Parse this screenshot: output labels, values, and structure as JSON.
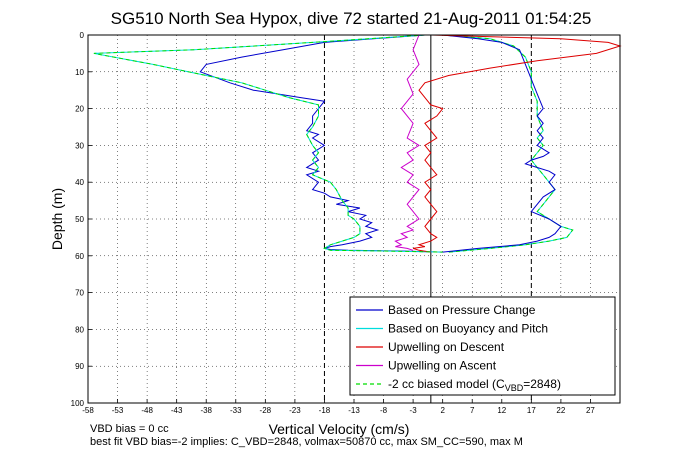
{
  "chart_data": {
    "type": "line",
    "title": "SG510 North Sea Hypox, dive 72 started 21-Aug-2011 01:54:25",
    "xlabel": "Vertical Velocity (cm/s)",
    "ylabel": "Depth (m)",
    "xlim": [
      -58,
      32
    ],
    "ylim": [
      100,
      0
    ],
    "y_reversed": true,
    "grid": true,
    "legend_position": "bottom-right",
    "xticks": [
      -58,
      -53,
      -48,
      -43,
      -38,
      -33,
      -28,
      -23,
      -18,
      -13,
      -8,
      -3,
      2,
      7,
      12,
      17,
      22,
      27
    ],
    "yticks": [
      0,
      10,
      20,
      30,
      40,
      50,
      60,
      70,
      80,
      90,
      100
    ],
    "reference_lines": [
      {
        "style": "dashed",
        "x": -18
      },
      {
        "style": "dashed",
        "x": 17
      },
      {
        "style": "solid",
        "x": 0
      }
    ],
    "series": [
      {
        "name": "Based on Pressure Change",
        "color": "#0000cc",
        "x": [
          -1,
          -18,
          -25,
          -32,
          -38,
          -39,
          -34,
          -30,
          -26,
          -22,
          -18,
          -19,
          -20,
          -20,
          -21,
          -19,
          -20,
          -18,
          -20,
          -19,
          -21,
          -19,
          -21,
          -19,
          -20,
          -18,
          -17,
          -14,
          -16,
          -12,
          -14,
          -11,
          -12,
          -10,
          -11,
          -9,
          -11,
          -10,
          -12,
          -15,
          -17,
          -18,
          -17,
          -14,
          -5,
          2
        ],
        "y": [
          0,
          2,
          4,
          6,
          8,
          10,
          13,
          15,
          16,
          17,
          18,
          20,
          22,
          24,
          26,
          27,
          28,
          30,
          32,
          34,
          36,
          37,
          38,
          40,
          42,
          43,
          44,
          45,
          46,
          47,
          48,
          49,
          50,
          51,
          52,
          53,
          54,
          55,
          56,
          57,
          57.5,
          58,
          58.3,
          58.5,
          58.7,
          59
        ]
      },
      {
        "name": "Based on Buoyancy and Pitch",
        "color": "#00dddd",
        "x": [
          -1,
          -20,
          -40,
          -57,
          -47,
          -38,
          -32,
          -28,
          -24,
          -19,
          -19,
          -20,
          -21,
          -20,
          -19,
          -20,
          -19,
          -20,
          -17,
          -16,
          -15,
          -14,
          -14,
          -13,
          -12,
          -12,
          -13,
          -15,
          -17,
          -18,
          -17,
          -8,
          2
        ],
        "y": [
          0,
          2,
          4,
          5,
          8,
          11,
          13,
          15,
          17,
          19,
          22,
          25,
          27,
          30,
          32,
          34,
          36,
          38,
          40,
          42,
          45,
          47,
          49,
          50,
          52,
          54,
          55,
          56,
          57,
          58,
          58.5,
          58.7,
          59
        ]
      },
      {
        "name": "Upwelling on Descent",
        "color": "#dd0000",
        "x": [
          0,
          22,
          30,
          32,
          28,
          18,
          10,
          3,
          -1,
          -2,
          -1,
          0,
          2,
          1,
          -1,
          0,
          1,
          -1,
          0,
          -1,
          0,
          1,
          -1,
          0,
          -1,
          0,
          1,
          0,
          -1,
          0,
          1,
          0,
          -2,
          -1,
          -3,
          -2,
          0
        ],
        "y": [
          0,
          1,
          2,
          3,
          5,
          7,
          9,
          11,
          13,
          15,
          17,
          19,
          20,
          22,
          24,
          26,
          28,
          30,
          32,
          34,
          36,
          38,
          40,
          42,
          44,
          46,
          48,
          50,
          52,
          54,
          55,
          56,
          57,
          57.5,
          58,
          58.5,
          59
        ]
      },
      {
        "name": "Upwelling on Ascent",
        "color": "#cc00cc",
        "x": [
          -2,
          -3,
          -2,
          -4,
          -3,
          -5,
          -3,
          -4,
          -2,
          -4,
          -3,
          -5,
          -3,
          -4,
          -2,
          -3,
          -4,
          -3,
          -2,
          -4,
          -3,
          -5,
          -4,
          -6,
          -5,
          -6,
          -4,
          -3
        ],
        "y": [
          0,
          4,
          8,
          12,
          16,
          20,
          24,
          28,
          30,
          32,
          34,
          36,
          38,
          40,
          42,
          44,
          46,
          48,
          50,
          52,
          53,
          54,
          55,
          56,
          57,
          57.5,
          58,
          58.5
        ]
      },
      {
        "name": "-2 cc biased model (C",
        "name_subscript": "VBD",
        "name_suffix": "=2848)",
        "color": "#00dd00",
        "dashed": true,
        "x": [
          -1,
          -20,
          -40,
          -57,
          -47,
          -38,
          -32,
          -28,
          -24,
          -19,
          -19,
          -20,
          -21,
          -20,
          -19,
          -20,
          -19,
          -20,
          -17,
          -16,
          -15,
          -14,
          -14,
          -13,
          -12,
          -12,
          -13,
          -15,
          -17,
          -18,
          -17,
          -8,
          2
        ],
        "y": [
          0,
          2,
          4,
          5,
          8,
          11,
          13,
          15,
          17,
          19,
          22,
          25,
          27,
          30,
          32,
          34,
          36,
          38,
          40,
          42,
          45,
          47,
          49,
          50,
          52,
          54,
          55,
          56,
          57,
          58,
          58.5,
          58.7,
          59
        ]
      }
    ],
    "ascent_mirror": {
      "color": "#0000cc",
      "x": [
        2,
        8,
        12,
        15,
        16,
        17,
        18,
        19,
        18,
        19,
        18,
        19,
        18,
        20,
        19,
        17,
        16,
        18,
        20,
        21,
        20,
        21,
        19,
        18,
        17,
        20,
        22,
        21,
        20,
        18,
        15,
        8,
        2
      ],
      "y": [
        0,
        1,
        2,
        4,
        8,
        12,
        16,
        20,
        22,
        24,
        26,
        28,
        30,
        32,
        33,
        34,
        35,
        36,
        37,
        38,
        40,
        42,
        44,
        46,
        48,
        50,
        52,
        54,
        55,
        56,
        57,
        58,
        59
      ]
    },
    "ascent_mirror_cyan": {
      "color": "#00dddd",
      "x": [
        2,
        10,
        14,
        16,
        17,
        17,
        18,
        18,
        19,
        18,
        19,
        17,
        18,
        19,
        20,
        21,
        20,
        19,
        18,
        20,
        22,
        24,
        23,
        20,
        16,
        10,
        3
      ],
      "y": [
        0,
        1,
        3,
        6,
        10,
        14,
        18,
        22,
        26,
        28,
        30,
        34,
        36,
        38,
        40,
        42,
        44,
        46,
        48,
        50,
        52,
        53,
        55,
        56,
        57,
        58,
        59
      ]
    }
  },
  "footnotes": {
    "line1": "VBD bias = 0 cc",
    "line2": "best fit VBD bias=-2 implies: C_VBD=2848, volmax=50870 cc, max SM_CC=590, max M"
  }
}
